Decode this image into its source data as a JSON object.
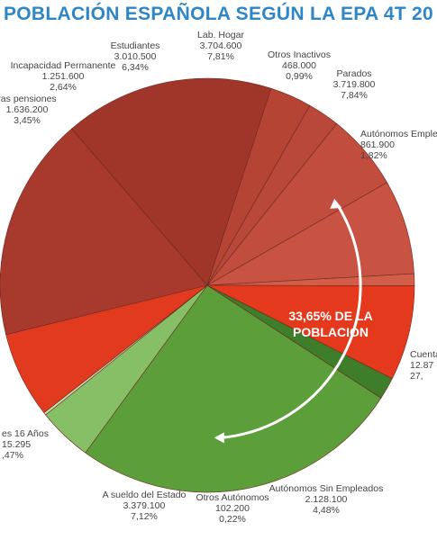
{
  "chart_data": {
    "type": "pie",
    "title": "POBLACIÓN ESPAÑOLA SEGÚN LA EPA 4T 20",
    "callout": {
      "line1": "33,65% DE LA",
      "line2": "POBLACIÓN"
    },
    "slices": [
      {
        "name": "Cuenta",
        "value": "12.87",
        "pct_label": "27,",
        "percent": 27.35,
        "color": "#5c9e3a"
      },
      {
        "name": "Autónomos Sin Empleados",
        "value": "2.128.100",
        "pct_label": "4,48%",
        "percent": 4.48,
        "color": "#86bf66"
      },
      {
        "name": "Otros Autónomos",
        "value": "102.200",
        "pct_label": "0,22%",
        "percent": 0.22,
        "color": "#c7e0b3"
      },
      {
        "name": "A sueldo del Estado",
        "value": "3.379.100",
        "pct_label": "7,12%",
        "percent": 7.12,
        "color": "#e23a1e"
      },
      {
        "name": "es 16 Años",
        "value": "15.295",
        "pct_label": ",47%",
        "percent": 18.5,
        "color": "#a73a2c"
      },
      {
        "name": "",
        "value": "",
        "pct_label": "",
        "percent": 17.3,
        "color": "#9f3629"
      },
      {
        "name": "ras pensiones",
        "value": "1.636.200",
        "pct_label": "3,45%",
        "percent": 3.45,
        "color": "#b54435"
      },
      {
        "name": "Incapacidad Permanente",
        "value": "1.251.600",
        "pct_label": "2,64%",
        "percent": 2.64,
        "color": "#b9473a"
      },
      {
        "name": "Estudiantes",
        "value": "3.010.500",
        "pct_label": "6,34%",
        "percent": 6.34,
        "color": "#c04d3e"
      },
      {
        "name": "Lab. Hogar",
        "value": "3.704.600",
        "pct_label": "7,81%",
        "percent": 7.81,
        "color": "#c85343"
      },
      {
        "name": "Otros Inactivos",
        "value": "468.000",
        "pct_label": "0,99%",
        "percent": 0.99,
        "color": "#d25e49"
      },
      {
        "name": "Parados",
        "value": "3.719.800",
        "pct_label": "7,84%",
        "percent": 7.84,
        "color": "#e5391d"
      },
      {
        "name": "Autónomos Emple",
        "value": "861.900",
        "pct_label": "1,82%",
        "percent": 1.82,
        "color": "#3e7d2a"
      }
    ]
  }
}
